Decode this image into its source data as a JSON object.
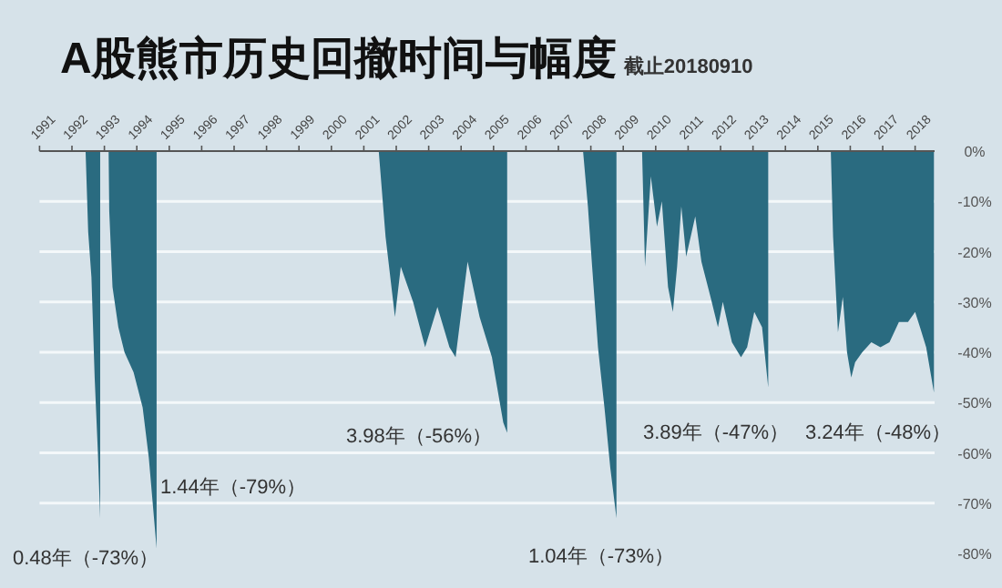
{
  "chart_data": {
    "type": "area",
    "title": "A股熊市历史回撤时间与幅度",
    "subtitle": "截止20180910",
    "series": [
      {
        "color": "#2a6b80",
        "x": [
          1992.42,
          1992.5,
          1992.6,
          1992.7,
          1992.8,
          1992.87
        ],
        "values": [
          0,
          -16,
          -25,
          -45,
          -60,
          -73
        ]
      },
      {
        "color": "#2a6b80",
        "x": [
          1993.13,
          1993.15,
          1993.25,
          1993.43,
          1993.62,
          1993.9,
          1994.18,
          1994.37,
          1994.61
        ],
        "values": [
          0,
          -12,
          -27,
          -35,
          -40,
          -44,
          -51,
          -61,
          -79
        ]
      },
      {
        "color": "#2a6b80",
        "x": [
          2001.46,
          2001.67,
          2001.96,
          2002.14,
          2002.52,
          2002.89,
          2003.27,
          2003.64,
          2003.83,
          2004.2,
          2004.57,
          2004.95,
          2005.3,
          2005.42
        ],
        "values": [
          0,
          -17,
          -33,
          -23,
          -30,
          -39,
          -31,
          -39,
          -41,
          -22,
          -33,
          -41,
          -54,
          -56
        ]
      },
      {
        "color": "#2a6b80",
        "x": [
          2007.76,
          2007.91,
          2008.04,
          2008.22,
          2008.42,
          2008.6,
          2008.79
        ],
        "values": [
          0,
          -11,
          -23,
          -39,
          -51,
          -63,
          -73
        ]
      },
      {
        "color": "#2a6b80",
        "x": [
          2009.58,
          2009.67,
          2009.85,
          2010.04,
          2010.19,
          2010.38,
          2010.53,
          2010.66,
          2010.79,
          2010.94,
          2011.22,
          2011.41,
          2011.69,
          2011.92,
          2012.07,
          2012.35,
          2012.63,
          2012.82,
          2013.04,
          2013.28,
          2013.47
        ],
        "values": [
          0,
          -23,
          -5,
          -15,
          -10,
          -27,
          -32,
          -23,
          -11,
          -21,
          -13,
          -22,
          -29,
          -35,
          -30,
          -38,
          -41,
          -39,
          -32,
          -35,
          -47
        ]
      },
      {
        "color": "#2a6b80",
        "x": [
          2015.4,
          2015.47,
          2015.62,
          2015.77,
          2015.9,
          2016.03,
          2016.15,
          2016.37,
          2016.65,
          2016.93,
          2017.21,
          2017.5,
          2017.78,
          2018.0,
          2018.15,
          2018.34,
          2018.58
        ],
        "values": [
          0,
          -17,
          -36,
          -29,
          -40,
          -45,
          -42,
          -40,
          -38,
          -39,
          -38,
          -34,
          -34,
          -32,
          -35,
          -39,
          -48
        ]
      }
    ],
    "xlim": [
      1991,
      2018.6
    ],
    "ylim": [
      -80,
      0
    ],
    "xticks": [
      1991,
      1992,
      1993,
      1994,
      1995,
      1996,
      1997,
      1998,
      1999,
      2000,
      2001,
      2002,
      2003,
      2004,
      2005,
      2006,
      2007,
      2008,
      2009,
      2010,
      2011,
      2012,
      2013,
      2014,
      2015,
      2016,
      2017,
      2018
    ],
    "yticks": [
      {
        "value": 0,
        "label": "0%"
      },
      {
        "value": -10,
        "label": "-10%"
      },
      {
        "value": -20,
        "label": "-20%"
      },
      {
        "value": -30,
        "label": "-30%"
      },
      {
        "value": -40,
        "label": "-40%"
      },
      {
        "value": -50,
        "label": "-50%"
      },
      {
        "value": -60,
        "label": "-60%"
      },
      {
        "value": -70,
        "label": "-70%"
      },
      {
        "value": -80,
        "label": "-80%"
      }
    ],
    "grid": "y",
    "annotations": [
      "0.48年（-73%）",
      "1.44年（-79%）",
      "3.98年（-56%）",
      "1.04年（-73%）",
      "3.89年（-47%）",
      "3.24年（-48%）"
    ]
  }
}
